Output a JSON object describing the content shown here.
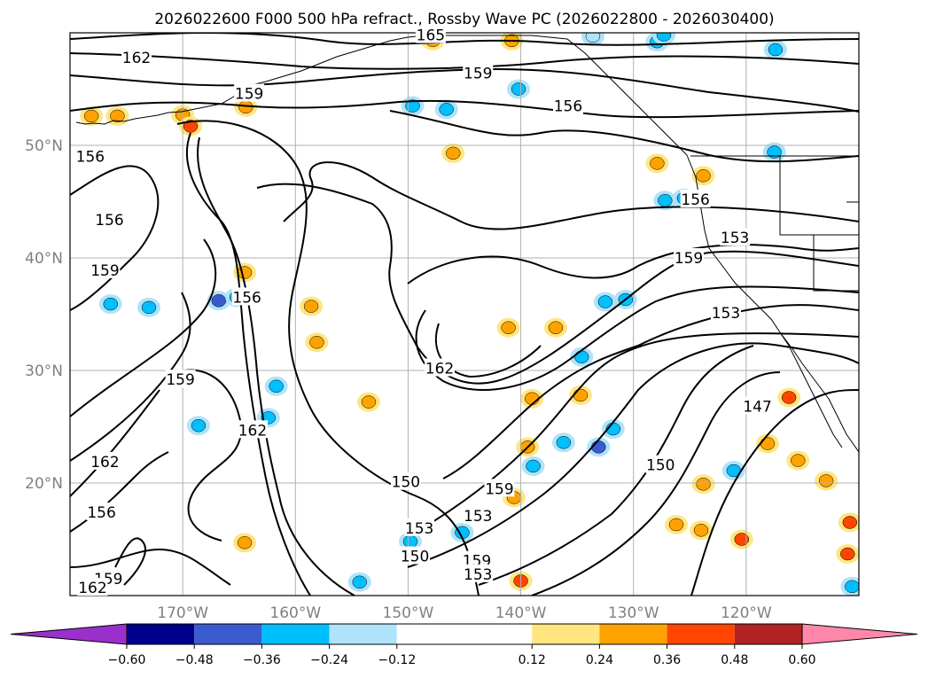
{
  "chart_data": {
    "type": "contour-map",
    "title": "2026022600 F000 500 hPa refract., Rossby Wave PC (2026022800 - 2026030400)",
    "lon_ticks": [
      {
        "value": -170,
        "label": "170°W"
      },
      {
        "value": -160,
        "label": "160°W"
      },
      {
        "value": -150,
        "label": "150°W"
      },
      {
        "value": -140,
        "label": "140°W"
      },
      {
        "value": -130,
        "label": "130°W"
      },
      {
        "value": -120,
        "label": "120°W"
      }
    ],
    "lat_ticks": [
      {
        "value": 50,
        "label": "50°N"
      },
      {
        "value": 40,
        "label": "40°N"
      },
      {
        "value": 30,
        "label": "30°N"
      },
      {
        "value": 20,
        "label": "20°N"
      }
    ],
    "lon_range": [
      -180,
      -110
    ],
    "lat_range": [
      10,
      60
    ],
    "grid": true,
    "colorbar": {
      "orientation": "horizontal",
      "extend": "both",
      "levels": [
        -0.6,
        -0.48,
        -0.36,
        -0.24,
        -0.12,
        0.12,
        0.24,
        0.36,
        0.48,
        0.6
      ],
      "tick_labels": [
        "−0.60",
        "−0.48",
        "−0.36",
        "−0.24",
        "−0.12",
        "0.12",
        "0.24",
        "0.36",
        "0.48",
        "0.60"
      ],
      "colors": [
        "#9a30cc",
        "#00008b",
        "#3a5bd0",
        "#00bfff",
        "#aee3fa",
        "#ffffff",
        "#ffe680",
        "#ffa200",
        "#ff4500",
        "#b22222",
        "#ff88aa"
      ]
    },
    "contour_labels": [
      {
        "text": "162",
        "lon": -174.1,
        "lat": 57.8
      },
      {
        "text": "165",
        "lon": -148.0,
        "lat": 59.8
      },
      {
        "text": "159",
        "lon": -164.1,
        "lat": 54.6
      },
      {
        "text": "159",
        "lon": -143.8,
        "lat": 56.4
      },
      {
        "text": "156",
        "lon": -135.8,
        "lat": 53.5
      },
      {
        "text": "156",
        "lon": -178.2,
        "lat": 49.0
      },
      {
        "text": "156",
        "lon": -176.5,
        "lat": 43.4
      },
      {
        "text": "159",
        "lon": -176.9,
        "lat": 38.9
      },
      {
        "text": "156",
        "lon": -164.3,
        "lat": 36.5
      },
      {
        "text": "156",
        "lon": -124.5,
        "lat": 45.2
      },
      {
        "text": "153",
        "lon": -121.0,
        "lat": 41.8
      },
      {
        "text": "159",
        "lon": -125.1,
        "lat": 40.0
      },
      {
        "text": "153",
        "lon": -121.8,
        "lat": 35.1
      },
      {
        "text": "159",
        "lon": -170.2,
        "lat": 29.2
      },
      {
        "text": "162",
        "lon": -147.2,
        "lat": 30.2
      },
      {
        "text": "162",
        "lon": -163.8,
        "lat": 24.7
      },
      {
        "text": "147",
        "lon": -119.0,
        "lat": 26.8
      },
      {
        "text": "162",
        "lon": -176.9,
        "lat": 21.9
      },
      {
        "text": "150",
        "lon": -150.2,
        "lat": 20.1
      },
      {
        "text": "150",
        "lon": -127.6,
        "lat": 21.6
      },
      {
        "text": "159",
        "lon": -141.9,
        "lat": 19.5
      },
      {
        "text": "153",
        "lon": -143.8,
        "lat": 17.1
      },
      {
        "text": "153",
        "lon": -149.0,
        "lat": 16.0
      },
      {
        "text": "156",
        "lon": -177.2,
        "lat": 17.4
      },
      {
        "text": "150",
        "lon": -149.4,
        "lat": 13.5
      },
      {
        "text": "159",
        "lon": -143.9,
        "lat": 13.1
      },
      {
        "text": "153",
        "lon": -143.8,
        "lat": 11.9
      },
      {
        "text": "159",
        "lon": -176.6,
        "lat": 11.5
      },
      {
        "text": "162",
        "lon": -178.0,
        "lat": 10.7
      }
    ],
    "anomaly_patches": [
      {
        "lon": -178.1,
        "lat": 52.6,
        "color": "#ffa200"
      },
      {
        "lon": -175.8,
        "lat": 52.6,
        "color": "#ffa200"
      },
      {
        "lon": -170.0,
        "lat": 52.7,
        "color": "#ffa200"
      },
      {
        "lon": -169.3,
        "lat": 51.7,
        "color": "#ff4500"
      },
      {
        "lon": -164.4,
        "lat": 53.4,
        "color": "#ffa200"
      },
      {
        "lon": -147.8,
        "lat": 59.3,
        "color": "#ffa200"
      },
      {
        "lon": -140.8,
        "lat": 59.3,
        "color": "#ffa200"
      },
      {
        "lon": -140.2,
        "lat": 55.0,
        "color": "#00bfff"
      },
      {
        "lon": -149.6,
        "lat": 53.5,
        "color": "#00bfff"
      },
      {
        "lon": -146.0,
        "lat": 49.3,
        "color": "#ffa200"
      },
      {
        "lon": -133.6,
        "lat": 59.7,
        "color": "#aee3fa"
      },
      {
        "lon": -127.9,
        "lat": 59.2,
        "color": "#00bfff"
      },
      {
        "lon": -127.3,
        "lat": 59.8,
        "color": "#00bfff"
      },
      {
        "lon": -117.4,
        "lat": 58.5,
        "color": "#00bfff"
      },
      {
        "lon": -127.9,
        "lat": 48.4,
        "color": "#ffa200"
      },
      {
        "lon": -123.8,
        "lat": 47.3,
        "color": "#ffa200"
      },
      {
        "lon": -127.2,
        "lat": 45.1,
        "color": "#00bfff"
      },
      {
        "lon": -125.5,
        "lat": 45.3,
        "color": "#00bfff"
      },
      {
        "lon": -117.5,
        "lat": 49.4,
        "color": "#00bfff"
      },
      {
        "lon": -173.0,
        "lat": 35.6,
        "color": "#00bfff"
      },
      {
        "lon": -176.4,
        "lat": 35.9,
        "color": "#00bfff"
      },
      {
        "lon": -166.8,
        "lat": 36.2,
        "color": "#3a5bd0"
      },
      {
        "lon": -165.2,
        "lat": 36.5,
        "color": "#00bfff"
      },
      {
        "lon": -164.5,
        "lat": 38.7,
        "color": "#ffa200"
      },
      {
        "lon": -158.6,
        "lat": 35.7,
        "color": "#ffa200"
      },
      {
        "lon": -161.7,
        "lat": 28.6,
        "color": "#00bfff"
      },
      {
        "lon": -158.1,
        "lat": 32.5,
        "color": "#ffa200"
      },
      {
        "lon": -153.5,
        "lat": 27.2,
        "color": "#ffa200"
      },
      {
        "lon": -146.6,
        "lat": 53.2,
        "color": "#00bfff"
      },
      {
        "lon": -141.1,
        "lat": 33.8,
        "color": "#ffa200"
      },
      {
        "lon": -136.9,
        "lat": 33.8,
        "color": "#ffa200"
      },
      {
        "lon": -132.5,
        "lat": 36.1,
        "color": "#00bfff"
      },
      {
        "lon": -130.7,
        "lat": 36.3,
        "color": "#00bfff"
      },
      {
        "lon": -134.6,
        "lat": 31.2,
        "color": "#00bfff"
      },
      {
        "lon": -134.7,
        "lat": 27.8,
        "color": "#ffa200"
      },
      {
        "lon": -139.0,
        "lat": 27.5,
        "color": "#ffa200"
      },
      {
        "lon": -133.1,
        "lat": 23.2,
        "color": "#3a5bd0"
      },
      {
        "lon": -131.8,
        "lat": 24.8,
        "color": "#00bfff"
      },
      {
        "lon": -136.2,
        "lat": 23.6,
        "color": "#00bfff"
      },
      {
        "lon": -139.4,
        "lat": 23.2,
        "color": "#ffa200"
      },
      {
        "lon": -138.9,
        "lat": 21.5,
        "color": "#00bfff"
      },
      {
        "lon": -140.6,
        "lat": 18.7,
        "color": "#ffa200"
      },
      {
        "lon": -145.2,
        "lat": 15.6,
        "color": "#00bfff"
      },
      {
        "lon": -149.8,
        "lat": 14.8,
        "color": "#00bfff"
      },
      {
        "lon": -154.3,
        "lat": 11.2,
        "color": "#00bfff"
      },
      {
        "lon": -162.4,
        "lat": 25.8,
        "color": "#00bfff"
      },
      {
        "lon": -168.6,
        "lat": 25.1,
        "color": "#00bfff"
      },
      {
        "lon": -164.5,
        "lat": 14.7,
        "color": "#ffa200"
      },
      {
        "lon": -140.0,
        "lat": 11.3,
        "color": "#ff4500"
      },
      {
        "lon": -126.2,
        "lat": 16.3,
        "color": "#ffa200"
      },
      {
        "lon": -124.0,
        "lat": 15.8,
        "color": "#ffa200"
      },
      {
        "lon": -120.4,
        "lat": 15.0,
        "color": "#ff4500"
      },
      {
        "lon": -123.8,
        "lat": 19.9,
        "color": "#ffa200"
      },
      {
        "lon": -121.1,
        "lat": 21.1,
        "color": "#00bfff"
      },
      {
        "lon": -118.1,
        "lat": 23.5,
        "color": "#ffa200"
      },
      {
        "lon": -116.2,
        "lat": 27.6,
        "color": "#ff4500"
      },
      {
        "lon": -115.4,
        "lat": 22.0,
        "color": "#ffa200"
      },
      {
        "lon": -112.9,
        "lat": 20.2,
        "color": "#ffa200"
      },
      {
        "lon": -110.8,
        "lat": 16.5,
        "color": "#ff4500"
      },
      {
        "lon": -111.0,
        "lat": 13.7,
        "color": "#ff4500"
      },
      {
        "lon": -110.6,
        "lat": 10.8,
        "color": "#00bfff"
      }
    ]
  }
}
